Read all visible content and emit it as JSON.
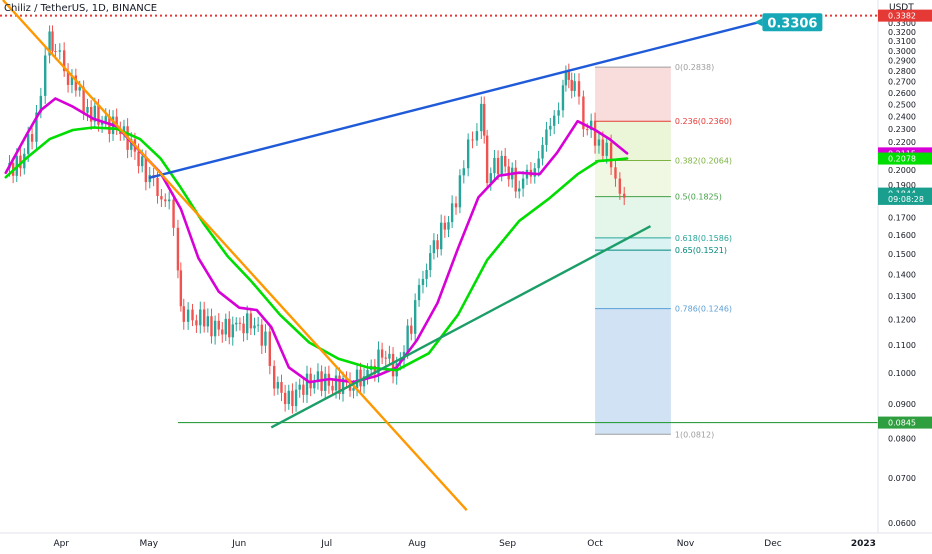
{
  "title": "Chiliz / TetherUS, 1D, BINANCE",
  "chart_data": {
    "type": "candlestick",
    "price_axis_unit": "USDT",
    "y_scale": "log",
    "ylim": [
      0.058,
      0.3567
    ],
    "y_ticks": [
      "0.3500",
      "0.3400",
      "0.3300",
      "0.3200",
      "0.3100",
      "0.3000",
      "0.2900",
      "0.2800",
      "0.2700",
      "0.2600",
      "0.2500",
      "0.2400",
      "0.2300",
      "0.2200",
      "0.2100",
      "0.2000",
      "0.1900",
      "0.1800",
      "0.1700",
      "0.1600",
      "0.1500",
      "0.1400",
      "0.1300",
      "0.1200",
      "0.1100",
      "0.1000",
      "0.0900",
      "0.0800",
      "0.0700",
      "0.0600"
    ],
    "x_ticks": [
      {
        "label": "Apr",
        "date": "2022-04-01"
      },
      {
        "label": "May",
        "date": "2022-05-01"
      },
      {
        "label": "Jun",
        "date": "2022-06-01"
      },
      {
        "label": "Jul",
        "date": "2022-07-01"
      },
      {
        "label": "Aug",
        "date": "2022-08-01"
      },
      {
        "label": "Sep",
        "date": "2022-09-01"
      },
      {
        "label": "Oct",
        "date": "2022-10-01"
      },
      {
        "label": "Nov",
        "date": "2022-11-01"
      },
      {
        "label": "Dec",
        "date": "2022-12-01"
      },
      {
        "label": "2023",
        "date": "2023-01-01"
      }
    ],
    "x_range": [
      "2022-03-11",
      "2023-01-06"
    ],
    "price_series": [
      {
        "date": "2022-03-13",
        "close": 0.201
      },
      {
        "date": "2022-03-18",
        "close": 0.204
      },
      {
        "date": "2022-03-22",
        "close": 0.228
      },
      {
        "date": "2022-03-25",
        "close": 0.262
      },
      {
        "date": "2022-03-28",
        "close": 0.318
      },
      {
        "date": "2022-03-30",
        "close": 0.298
      },
      {
        "date": "2022-04-02",
        "close": 0.284
      },
      {
        "date": "2022-04-06",
        "close": 0.262
      },
      {
        "date": "2022-04-10",
        "close": 0.245
      },
      {
        "date": "2022-04-15",
        "close": 0.236
      },
      {
        "date": "2022-04-20",
        "close": 0.232
      },
      {
        "date": "2022-04-25",
        "close": 0.218
      },
      {
        "date": "2022-04-30",
        "close": 0.197
      },
      {
        "date": "2022-05-04",
        "close": 0.189
      },
      {
        "date": "2022-05-08",
        "close": 0.176
      },
      {
        "date": "2022-05-11",
        "close": 0.143
      },
      {
        "date": "2022-05-13",
        "close": 0.117
      },
      {
        "date": "2022-05-16",
        "close": 0.123
      },
      {
        "date": "2022-05-20",
        "close": 0.119
      },
      {
        "date": "2022-05-25",
        "close": 0.116
      },
      {
        "date": "2022-05-31",
        "close": 0.117
      },
      {
        "date": "2022-06-05",
        "close": 0.119
      },
      {
        "date": "2022-06-10",
        "close": 0.112
      },
      {
        "date": "2022-06-13",
        "close": 0.096
      },
      {
        "date": "2022-06-18",
        "close": 0.091
      },
      {
        "date": "2022-06-23",
        "close": 0.096
      },
      {
        "date": "2022-06-28",
        "close": 0.098
      },
      {
        "date": "2022-07-03",
        "close": 0.096
      },
      {
        "date": "2022-07-09",
        "close": 0.097
      },
      {
        "date": "2022-07-15",
        "close": 0.099
      },
      {
        "date": "2022-07-20",
        "close": 0.107
      },
      {
        "date": "2022-07-25",
        "close": 0.101
      },
      {
        "date": "2022-07-30",
        "close": 0.118
      },
      {
        "date": "2022-08-03",
        "close": 0.142
      },
      {
        "date": "2022-08-08",
        "close": 0.158
      },
      {
        "date": "2022-08-13",
        "close": 0.173
      },
      {
        "date": "2022-08-17",
        "close": 0.201
      },
      {
        "date": "2022-08-20",
        "close": 0.228
      },
      {
        "date": "2022-08-23",
        "close": 0.242
      },
      {
        "date": "2022-08-25",
        "close": 0.198
      },
      {
        "date": "2022-08-30",
        "close": 0.206
      },
      {
        "date": "2022-09-05",
        "close": 0.187
      },
      {
        "date": "2022-09-09",
        "close": 0.202
      },
      {
        "date": "2022-09-13",
        "close": 0.212
      },
      {
        "date": "2022-09-17",
        "close": 0.245
      },
      {
        "date": "2022-09-20",
        "close": 0.262
      },
      {
        "date": "2022-09-22",
        "close": 0.279
      },
      {
        "date": "2022-09-24",
        "close": 0.262
      },
      {
        "date": "2022-09-27",
        "close": 0.238
      },
      {
        "date": "2022-10-01",
        "close": 0.224
      },
      {
        "date": "2022-10-05",
        "close": 0.212
      },
      {
        "date": "2022-10-08",
        "close": 0.19
      },
      {
        "date": "2022-10-11",
        "close": 0.184
      }
    ],
    "series": [
      {
        "name": "",
        "color": "#d700d7",
        "values": [
          {
            "date": "2022-03-13",
            "value": 0.198
          },
          {
            "date": "2022-03-20",
            "value": 0.225
          },
          {
            "date": "2022-03-25",
            "value": 0.245
          },
          {
            "date": "2022-03-30",
            "value": 0.255
          },
          {
            "date": "2022-04-05",
            "value": 0.248
          },
          {
            "date": "2022-04-12",
            "value": 0.238
          },
          {
            "date": "2022-04-20",
            "value": 0.232
          },
          {
            "date": "2022-04-28",
            "value": 0.213
          },
          {
            "date": "2022-05-05",
            "value": 0.198
          },
          {
            "date": "2022-05-12",
            "value": 0.175
          },
          {
            "date": "2022-05-18",
            "value": 0.148
          },
          {
            "date": "2022-05-25",
            "value": 0.132
          },
          {
            "date": "2022-06-01",
            "value": 0.125
          },
          {
            "date": "2022-06-07",
            "value": 0.124
          },
          {
            "date": "2022-06-12",
            "value": 0.117
          },
          {
            "date": "2022-06-18",
            "value": 0.102
          },
          {
            "date": "2022-06-25",
            "value": 0.097
          },
          {
            "date": "2022-07-02",
            "value": 0.098
          },
          {
            "date": "2022-07-10",
            "value": 0.097
          },
          {
            "date": "2022-07-18",
            "value": 0.099
          },
          {
            "date": "2022-07-25",
            "value": 0.102
          },
          {
            "date": "2022-08-01",
            "value": 0.112
          },
          {
            "date": "2022-08-08",
            "value": 0.127
          },
          {
            "date": "2022-08-15",
            "value": 0.153
          },
          {
            "date": "2022-08-22",
            "value": 0.182
          },
          {
            "date": "2022-08-29",
            "value": 0.196
          },
          {
            "date": "2022-09-05",
            "value": 0.198
          },
          {
            "date": "2022-09-12",
            "value": 0.197
          },
          {
            "date": "2022-09-18",
            "value": 0.212
          },
          {
            "date": "2022-09-25",
            "value": 0.236
          },
          {
            "date": "2022-10-01",
            "value": 0.229
          },
          {
            "date": "2022-10-06",
            "value": 0.222
          },
          {
            "date": "2022-10-12",
            "value": 0.2115
          }
        ]
      },
      {
        "name": "",
        "color": "#00dd00",
        "values": [
          {
            "date": "2022-03-13",
            "value": 0.195
          },
          {
            "date": "2022-03-20",
            "value": 0.208
          },
          {
            "date": "2022-03-28",
            "value": 0.222
          },
          {
            "date": "2022-04-05",
            "value": 0.229
          },
          {
            "date": "2022-04-12",
            "value": 0.231
          },
          {
            "date": "2022-04-20",
            "value": 0.23
          },
          {
            "date": "2022-04-28",
            "value": 0.222
          },
          {
            "date": "2022-05-05",
            "value": 0.208
          },
          {
            "date": "2022-05-12",
            "value": 0.188
          },
          {
            "date": "2022-05-20",
            "value": 0.166
          },
          {
            "date": "2022-05-28",
            "value": 0.149
          },
          {
            "date": "2022-06-05",
            "value": 0.137
          },
          {
            "date": "2022-06-15",
            "value": 0.122
          },
          {
            "date": "2022-06-25",
            "value": 0.111
          },
          {
            "date": "2022-07-05",
            "value": 0.105
          },
          {
            "date": "2022-07-15",
            "value": 0.102
          },
          {
            "date": "2022-07-25",
            "value": 0.101
          },
          {
            "date": "2022-08-05",
            "value": 0.107
          },
          {
            "date": "2022-08-15",
            "value": 0.122
          },
          {
            "date": "2022-08-25",
            "value": 0.147
          },
          {
            "date": "2022-09-05",
            "value": 0.168
          },
          {
            "date": "2022-09-15",
            "value": 0.181
          },
          {
            "date": "2022-09-25",
            "value": 0.197
          },
          {
            "date": "2022-10-02",
            "value": 0.206
          },
          {
            "date": "2022-10-08",
            "value": 0.207
          },
          {
            "date": "2022-10-12",
            "value": 0.2078
          }
        ]
      }
    ],
    "trendlines": [
      {
        "color": "#1f5bd8",
        "points": [
          {
            "date": "2022-05-01",
            "value": 0.1945
          },
          {
            "date": "2022-11-26",
            "value": 0.3306
          }
        ]
      },
      {
        "color": "#ff9800",
        "points": [
          {
            "date": "2022-03-12",
            "value": 0.3567
          },
          {
            "date": "2022-08-18",
            "value": 0.0627
          }
        ]
      },
      {
        "color": "#1b9e67",
        "points": [
          {
            "date": "2022-06-12",
            "value": 0.0831
          },
          {
            "date": "2022-10-20",
            "value": 0.165
          }
        ]
      }
    ],
    "horizontal_lines": [
      {
        "color": "#e53935",
        "style": "dotted",
        "value": 0.3382
      },
      {
        "color": "#2e9e3e",
        "style": "solid",
        "value": 0.0845,
        "from_date": "2022-05-11"
      }
    ],
    "fibonacci": {
      "from_date": "2022-10-01",
      "to_date": "2022-10-27",
      "levels": [
        {
          "ratio": "0",
          "label": "0(0.2838)",
          "value": 0.2838,
          "color": "#9e9e9e"
        },
        {
          "ratio": "0.236",
          "label": "0.236(0.2360)",
          "value": 0.236,
          "color": "#e53935"
        },
        {
          "ratio": "0.382",
          "label": "0.382(0.2064)",
          "value": 0.2064,
          "color": "#7cb342"
        },
        {
          "ratio": "0.5",
          "label": "0.5(0.1825)",
          "value": 0.1825,
          "color": "#43a047"
        },
        {
          "ratio": "0.618",
          "label": "0.618(0.1586)",
          "value": 0.1586,
          "color": "#26a69a"
        },
        {
          "ratio": "0.65",
          "label": "0.65(0.1521)",
          "value": 0.1521,
          "color": "#00897b"
        },
        {
          "ratio": "0.786",
          "label": "0.786(0.1246)",
          "value": 0.1246,
          "color": "#5c9fd6"
        },
        {
          "ratio": "1",
          "label": "1(0.0812)",
          "value": 0.0812,
          "color": "#9e9e9e"
        }
      ],
      "band_colors": [
        "#f8d7d7",
        "#e8f5d2",
        "#edf7df",
        "#dff3e6",
        "#d6f1f2",
        "#ccebf2",
        "#c9ddf3"
      ]
    },
    "price_labels": [
      {
        "text": "0.3382",
        "value": 0.3382,
        "bg": "#e53935",
        "fg": "#ffffff"
      },
      {
        "text": "0.2115",
        "value": 0.2115,
        "bg": "#d700d7",
        "fg": "#ffffff"
      },
      {
        "text": "0.2078",
        "value": 0.2078,
        "bg": "#00dd00",
        "fg": "#ffffff"
      },
      {
        "text": "0.1844",
        "value": 0.1844,
        "bg": "#1a9e8e",
        "fg": "#ffffff"
      },
      {
        "text": "09:08:28",
        "value": 0.1811,
        "bg": "#1a9e8e",
        "fg": "#ffffff"
      },
      {
        "text": "0.0845",
        "value": 0.0845,
        "bg": "#2e9e3e",
        "fg": "#ffffff"
      }
    ],
    "annotations": [
      {
        "text": "0.3306",
        "date": "2022-11-26",
        "value": 0.3306,
        "bg": "#17a8b8",
        "fg": "#ffffff"
      }
    ]
  }
}
